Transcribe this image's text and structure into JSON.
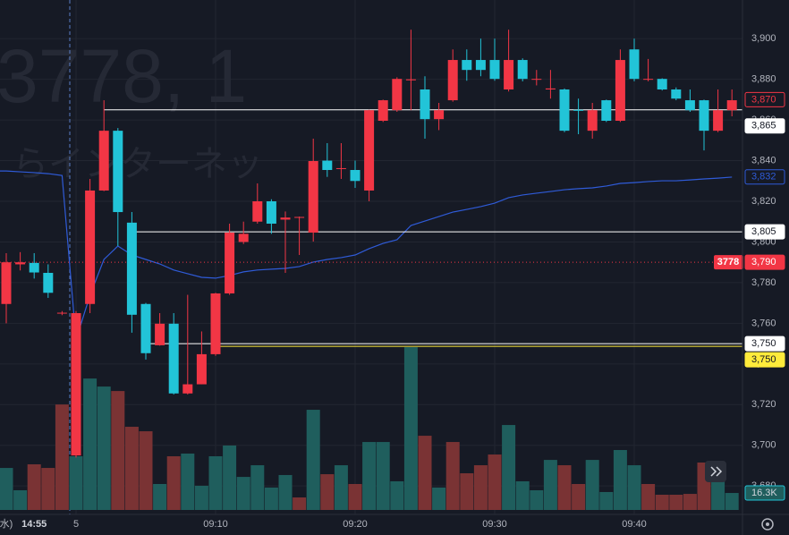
{
  "chart_data": {
    "type": "candlestick",
    "watermark": "3778, 1",
    "watermark_name": "らインターネッ",
    "categories": [
      "水)",
      null,
      "14:55",
      null,
      null,
      "5",
      null,
      null,
      null,
      null,
      null,
      null,
      null,
      null,
      null,
      "09:10",
      null,
      null,
      null,
      null,
      null,
      null,
      null,
      null,
      null,
      "09:20",
      null,
      null,
      null,
      null,
      null,
      null,
      null,
      null,
      null,
      "09:30",
      null,
      null,
      null,
      null,
      null,
      null,
      null,
      null,
      null,
      "09:40",
      null,
      null,
      null,
      null,
      null,
      null,
      null
    ],
    "open": [
      3769.5,
      3789,
      3789.7,
      3784.8,
      3765,
      3695,
      3769.5,
      3825.3,
      3854.7,
      3809.5,
      3769.5,
      3749.2,
      3759.8,
      3725.5,
      3730,
      3744.8,
      3774.7,
      3800,
      3810,
      3820,
      3811,
      3812,
      3804.6,
      3840,
      3836,
      3835.4,
      3825.3,
      3859.6,
      3864.8,
      3879.5,
      3875,
      3860.4,
      3869.7,
      3889.5,
      3889.5,
      3889.5,
      3875,
      3889.5,
      3880,
      3875,
      3875,
      3865,
      3854.7,
      3869.7,
      3859.6,
      3894.7,
      3880,
      3880.2,
      3875,
      3869.7,
      3869.7,
      3854.7,
      3864.8
    ],
    "high": [
      3794.5,
      3795,
      3794.5,
      3789,
      3766,
      3766,
      3831,
      3869.7,
      3856,
      3814.7,
      3770,
      3765,
      3765,
      3774,
      3756,
      3775,
      3809,
      3810,
      3828.8,
      3821,
      3815,
      3812.5,
      3850.8,
      3848.6,
      3848.6,
      3840,
      3865,
      3870,
      3881,
      3904.4,
      3881.5,
      3868.4,
      3894.7,
      3894.7,
      3900,
      3900,
      3904.4,
      3890.3,
      3884.6,
      3884.6,
      3875.5,
      3870.5,
      3868.4,
      3870,
      3894.7,
      3900,
      3890,
      3880.5,
      3876,
      3875,
      3870,
      3875,
      3875
    ],
    "low": [
      3760,
      3786,
      3782,
      3772.5,
      3764,
      3694,
      3765,
      3825,
      3798,
      3755.4,
      3742.2,
      3749,
      3725,
      3725,
      3730,
      3744,
      3774,
      3799,
      3809,
      3804,
      3784.8,
      3793.6,
      3800.2,
      3832,
      3831,
      3826.6,
      3820,
      3859,
      3864,
      3864.8,
      3850.8,
      3855,
      3869,
      3879.3,
      3881.5,
      3879.3,
      3874,
      3879,
      3877,
      3870.5,
      3854,
      3853,
      3850.8,
      3859,
      3859,
      3879,
      3879,
      3874.5,
      3869.7,
      3864,
      3845,
      3854,
      3861.8
    ],
    "close": [
      3790,
      3790,
      3785,
      3775,
      3765.2,
      3765,
      3825.3,
      3854.7,
      3814.7,
      3764.2,
      3745.3,
      3759.8,
      3725.5,
      3730,
      3744.8,
      3774.7,
      3804.6,
      3804,
      3820,
      3809,
      3812,
      3812.3,
      3839.8,
      3835.4,
      3836.3,
      3830,
      3864.8,
      3869.7,
      3880.2,
      3880,
      3860.4,
      3864.8,
      3889.5,
      3884.6,
      3884.6,
      3880.2,
      3889.5,
      3880.2,
      3880.2,
      3875.5,
      3854.7,
      3864.5,
      3864.8,
      3859.6,
      3889.5,
      3880.2,
      3880.2,
      3875,
      3870.5,
      3864.8,
      3854.7,
      3864.8,
      3869.7
    ],
    "up_color": "#f23645",
    "down_color": "#22c4d8",
    "vwap": {
      "color": "#2f5bd8",
      "values": [
        3834.9,
        3834.5,
        3834.1,
        3833.6,
        3832.7,
        3751.9,
        3773.8,
        3791.4,
        3798,
        3793.6,
        3791.4,
        3789.2,
        3786.2,
        3784.4,
        3782.6,
        3782.2,
        3783.5,
        3785.3,
        3786.2,
        3786.6,
        3787,
        3787.9,
        3790.1,
        3791.4,
        3792.3,
        3793.6,
        3796.7,
        3799.3,
        3801.1,
        3808.1,
        3810.3,
        3812.5,
        3814.7,
        3816,
        3817.4,
        3819.1,
        3821.8,
        3823.1,
        3824,
        3824.8,
        3825.7,
        3826.2,
        3826.6,
        3827.5,
        3828.8,
        3829.2,
        3829.7,
        3830.1,
        3830.1,
        3830.5,
        3831,
        3831.4,
        3831.9
      ]
    },
    "volume": [
      40300,
      18900,
      43800,
      40300,
      101200,
      51500,
      126100,
      118400,
      114100,
      79800,
      75500,
      24900,
      51500,
      54100,
      23200,
      51500,
      61800,
      31700,
      42900,
      21500,
      33500,
      12000,
      96100,
      34300,
      42900,
      24900,
      65200,
      65200,
      27500,
      156200,
      71200,
      21500,
      65200,
      35200,
      42900,
      53200,
      81500,
      27500,
      18900,
      48000,
      42900,
      24900,
      48000,
      17200,
      57500,
      42900,
      24900,
      14600,
      14600,
      15400,
      45500,
      27500,
      16300
    ],
    "volume_colors": [
      "t",
      "t",
      "r",
      "r",
      "r",
      "t",
      "t",
      "t",
      "r",
      "r",
      "r",
      "t",
      "r",
      "t",
      "t",
      "t",
      "t",
      "t",
      "t",
      "t",
      "t",
      "r",
      "t",
      "r",
      "t",
      "r",
      "t",
      "t",
      "t",
      "t",
      "r",
      "t",
      "r",
      "r",
      "r",
      "r",
      "t",
      "t",
      "t",
      "t",
      "r",
      "r",
      "t",
      "t",
      "t",
      "t",
      "r",
      "r",
      "r",
      "r",
      "r",
      "t",
      "t"
    ],
    "volume_teal": "#1f5e5d",
    "volume_red": "#7a3334",
    "volume_lim": [
      0,
      200000
    ],
    "volume_last_label": "16.3K",
    "ylim": [
      3666,
      3919
    ],
    "yticks": [
      {
        "value": 3680,
        "label": "3,680"
      },
      {
        "value": 3700,
        "label": "3,700"
      },
      {
        "value": 3720,
        "label": "3,720"
      },
      {
        "value": 3740,
        "label": "3,740"
      },
      {
        "value": 3760,
        "label": "3,760"
      },
      {
        "value": 3780,
        "label": "3,780"
      },
      {
        "value": 3800,
        "label": "3,800"
      },
      {
        "value": 3820,
        "label": "3,820"
      },
      {
        "value": 3840,
        "label": "3,840"
      },
      {
        "value": 3860,
        "label": "3,860"
      },
      {
        "value": 3880,
        "label": "3,880"
      },
      {
        "value": 3900,
        "label": "3,900"
      }
    ],
    "grid": true,
    "price_lines": [
      {
        "value": 3870,
        "label": "3,870",
        "style": "outline",
        "color": "#f23645"
      },
      {
        "value": 3865,
        "label": "3,865",
        "style": "filled",
        "color": "#ffffff"
      },
      {
        "value": 3832,
        "label": "3,832",
        "style": "outline",
        "color": "#2f5bd8"
      },
      {
        "value": 3805,
        "label": "3,805",
        "style": "filled",
        "color": "#ffffff"
      },
      {
        "value": 3790,
        "label": "3,790",
        "name": "3778",
        "style": "filled",
        "color": "#f23645"
      },
      {
        "value": 3750,
        "label": "3,750",
        "style": "filled",
        "color": "#ffffff"
      },
      {
        "value": 3750,
        "label": "3,750",
        "style": "filled",
        "color": "#ffeb3b"
      }
    ]
  }
}
